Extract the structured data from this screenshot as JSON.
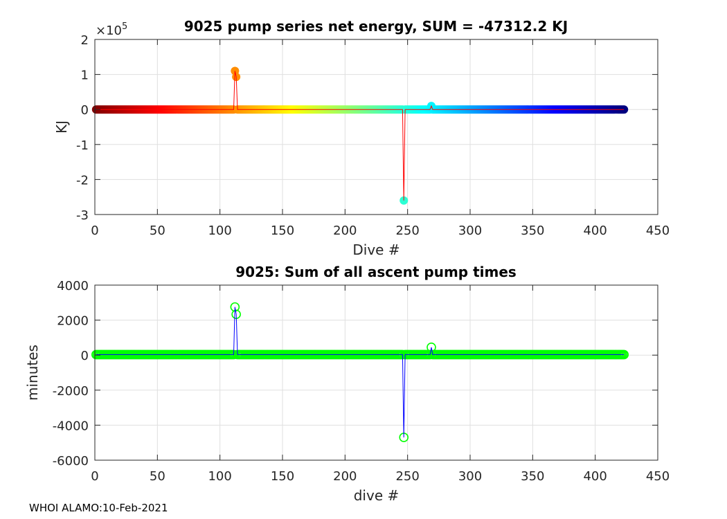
{
  "footer": "WHOI ALAMO:10-Feb-2021",
  "chart_data": [
    {
      "type": "scatter",
      "title": "9025 pump series net energy, SUM = -47312.2 KJ",
      "xlabel": "Dive #",
      "ylabel": "KJ",
      "exponent_label": "×10",
      "exponent_power": "5",
      "xlim": [
        0,
        450
      ],
      "ylim": [
        -3,
        2
      ],
      "xticks": [
        0,
        50,
        100,
        150,
        200,
        250,
        300,
        350,
        400,
        450
      ],
      "yticks": [
        -3,
        -2,
        -1,
        0,
        1,
        2
      ],
      "grid": true,
      "marker": "filled-circle",
      "colormap": "jet, dark red (early dives) to dark blue (late dives)",
      "line_color": "#ff0000",
      "n_dives": 423,
      "baseline_value": 0,
      "outliers": [
        {
          "dive": 112,
          "value": 1.1
        },
        {
          "dive": 113,
          "value": 0.93
        },
        {
          "dive": 247,
          "value": -2.6
        },
        {
          "dive": 269,
          "value": 0.1
        }
      ]
    },
    {
      "type": "scatter",
      "title": "9025: Sum of all ascent pump times",
      "xlabel": "dive #",
      "ylabel": "minutes",
      "xlim": [
        0,
        450
      ],
      "ylim": [
        -6000,
        4000
      ],
      "xticks": [
        0,
        50,
        100,
        150,
        200,
        250,
        300,
        350,
        400,
        450
      ],
      "yticks": [
        -6000,
        -4000,
        -2000,
        0,
        2000,
        4000
      ],
      "grid": true,
      "marker": "open-circle",
      "marker_color": "#00ff00",
      "line_color": "#0000ff",
      "n_dives": 423,
      "baseline_value": 30,
      "outliers": [
        {
          "dive": 112,
          "value": 2750
        },
        {
          "dive": 113,
          "value": 2330
        },
        {
          "dive": 247,
          "value": -4700
        },
        {
          "dive": 269,
          "value": 450
        }
      ]
    }
  ]
}
